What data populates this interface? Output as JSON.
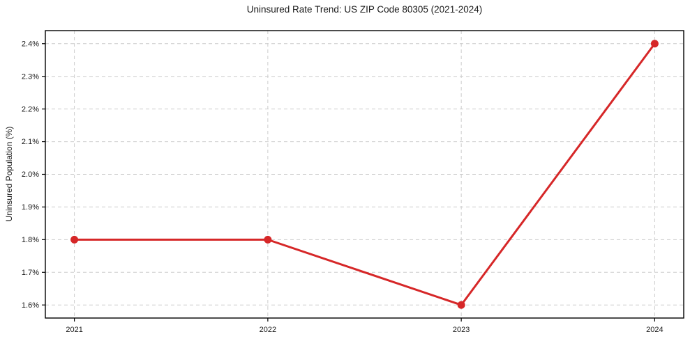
{
  "chart_data": {
    "type": "line",
    "title": "Uninsured Rate Trend: US ZIP Code 80305 (2021-2024)",
    "xlabel": "",
    "ylabel": "Uninsured Population (%)",
    "x": [
      2021,
      2022,
      2023,
      2024
    ],
    "x_tick_labels": [
      "2021",
      "2022",
      "2023",
      "2024"
    ],
    "y_ticks": [
      1.6,
      1.7,
      1.8,
      1.9,
      2.0,
      2.1,
      2.2,
      2.3,
      2.4
    ],
    "y_tick_labels": [
      "1.6%",
      "1.7%",
      "1.8%",
      "1.9%",
      "2.0%",
      "2.1%",
      "2.2%",
      "2.3%",
      "2.4%"
    ],
    "series": [
      {
        "name": "Uninsured rate",
        "values": [
          1.8,
          1.8,
          1.6,
          2.4
        ],
        "color": "#d62728",
        "marker": "circle"
      }
    ],
    "xlim": [
      2020.85,
      2024.15
    ],
    "ylim": [
      1.56,
      2.44
    ],
    "grid": true,
    "grid_style": "dashed",
    "legend": "none",
    "colors": {
      "line": "#d62728",
      "grid": "#cccccc",
      "spine": "#000000",
      "text": "#1a1a1a",
      "background": "#ffffff"
    }
  }
}
